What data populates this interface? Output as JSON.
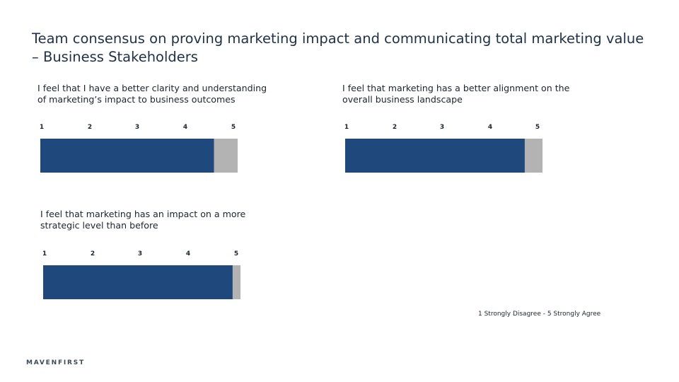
{
  "title": "Team consensus on proving marketing impact and communicating total marketing value – Business Stakeholders",
  "scale_note": "1 Strongly Disagree - 5 Strongly Agree",
  "logo": "MAVENFIRST",
  "colors": {
    "fill": "#1f497d",
    "remainder": "#b3b3b3"
  },
  "chart_data": [
    {
      "type": "bar",
      "orientation": "horizontal",
      "question": "I feel that I have a better clarity and understanding of marketing’s impact to business outcomes",
      "ticks": [
        "1",
        "2",
        "3",
        "4",
        "5"
      ],
      "xlim": [
        1,
        5
      ],
      "value": 4.4,
      "max": 5
    },
    {
      "type": "bar",
      "orientation": "horizontal",
      "question": "I feel that marketing has a better alignment on the overall business landscape",
      "ticks": [
        "1",
        "2",
        "3",
        "4",
        "5"
      ],
      "xlim": [
        1,
        5
      ],
      "value": 4.55,
      "max": 5
    },
    {
      "type": "bar",
      "orientation": "horizontal",
      "question": "I feel that marketing has an impact on a more strategic level than before",
      "ticks": [
        "1",
        "2",
        "3",
        "4",
        "5"
      ],
      "xlim": [
        1,
        5
      ],
      "value": 4.8,
      "max": 5
    }
  ]
}
